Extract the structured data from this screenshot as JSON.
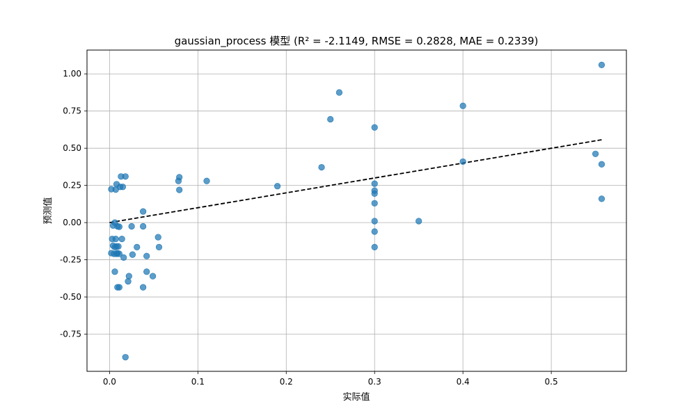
{
  "chart_data": {
    "type": "scatter",
    "title": "gaussian_process 模型 (R² = -2.1149, RMSE = 0.2828, MAE = 0.2339)",
    "xlabel": "实际值",
    "ylabel": "预测值",
    "xlim": [
      -0.0255,
      0.585
    ],
    "ylim": [
      -1.0,
      1.16
    ],
    "x_ticks": [
      0.0,
      0.1,
      0.2,
      0.3,
      0.4,
      0.5
    ],
    "x_tick_labels": [
      "0.0",
      "0.1",
      "0.2",
      "0.3",
      "0.4",
      "0.5"
    ],
    "y_ticks": [
      1.0,
      0.75,
      0.5,
      0.25,
      0.0,
      -0.25,
      -0.5,
      -0.75
    ],
    "y_tick_labels": [
      "1.00",
      "0.75",
      "0.50",
      "0.25",
      "0.00",
      "-0.25",
      "-0.50",
      "-0.75"
    ],
    "grid": true,
    "colors": {
      "points": "#1f77b4",
      "ideal_line": "#000000",
      "grid": "#b0b0b0"
    },
    "ideal_line": {
      "x": [
        0.0,
        0.557
      ],
      "y": [
        0.0,
        0.557
      ],
      "style": "dashed"
    },
    "points": [
      {
        "x": 0.557,
        "y": 1.06
      },
      {
        "x": 0.26,
        "y": 0.875
      },
      {
        "x": 0.4,
        "y": 0.785
      },
      {
        "x": 0.25,
        "y": 0.695
      },
      {
        "x": 0.3,
        "y": 0.64
      },
      {
        "x": 0.55,
        "y": 0.462
      },
      {
        "x": 0.4,
        "y": 0.41
      },
      {
        "x": 0.557,
        "y": 0.392
      },
      {
        "x": 0.24,
        "y": 0.372
      },
      {
        "x": 0.013,
        "y": 0.31
      },
      {
        "x": 0.018,
        "y": 0.31
      },
      {
        "x": 0.079,
        "y": 0.305
      },
      {
        "x": 0.078,
        "y": 0.28
      },
      {
        "x": 0.11,
        "y": 0.28
      },
      {
        "x": 0.3,
        "y": 0.262
      },
      {
        "x": 0.008,
        "y": 0.258
      },
      {
        "x": 0.012,
        "y": 0.24
      },
      {
        "x": 0.015,
        "y": 0.24
      },
      {
        "x": 0.19,
        "y": 0.245
      },
      {
        "x": 0.002,
        "y": 0.225
      },
      {
        "x": 0.007,
        "y": 0.222
      },
      {
        "x": 0.079,
        "y": 0.22
      },
      {
        "x": 0.3,
        "y": 0.215
      },
      {
        "x": 0.3,
        "y": 0.195
      },
      {
        "x": 0.557,
        "y": 0.16
      },
      {
        "x": 0.3,
        "y": 0.13
      },
      {
        "x": 0.038,
        "y": 0.075
      },
      {
        "x": 0.3,
        "y": 0.01
      },
      {
        "x": 0.35,
        "y": 0.01
      },
      {
        "x": 0.006,
        "y": 0.0
      },
      {
        "x": 0.004,
        "y": -0.02
      },
      {
        "x": 0.009,
        "y": -0.025
      },
      {
        "x": 0.011,
        "y": -0.028
      },
      {
        "x": 0.025,
        "y": -0.025
      },
      {
        "x": 0.038,
        "y": -0.025
      },
      {
        "x": 0.3,
        "y": -0.06
      },
      {
        "x": 0.055,
        "y": -0.098
      },
      {
        "x": 0.003,
        "y": -0.11
      },
      {
        "x": 0.007,
        "y": -0.11
      },
      {
        "x": 0.014,
        "y": -0.11
      },
      {
        "x": 0.004,
        "y": -0.155
      },
      {
        "x": 0.008,
        "y": -0.16
      },
      {
        "x": 0.01,
        "y": -0.16
      },
      {
        "x": 0.006,
        "y": -0.165
      },
      {
        "x": 0.031,
        "y": -0.165
      },
      {
        "x": 0.056,
        "y": -0.165
      },
      {
        "x": 0.3,
        "y": -0.165
      },
      {
        "x": 0.002,
        "y": -0.205
      },
      {
        "x": 0.005,
        "y": -0.21
      },
      {
        "x": 0.008,
        "y": -0.21
      },
      {
        "x": 0.009,
        "y": -0.205
      },
      {
        "x": 0.011,
        "y": -0.21
      },
      {
        "x": 0.026,
        "y": -0.215
      },
      {
        "x": 0.042,
        "y": -0.225
      },
      {
        "x": 0.016,
        "y": -0.235
      },
      {
        "x": 0.006,
        "y": -0.33
      },
      {
        "x": 0.042,
        "y": -0.33
      },
      {
        "x": 0.022,
        "y": -0.36
      },
      {
        "x": 0.049,
        "y": -0.36
      },
      {
        "x": 0.021,
        "y": -0.395
      },
      {
        "x": 0.009,
        "y": -0.435
      },
      {
        "x": 0.011,
        "y": -0.435
      },
      {
        "x": 0.038,
        "y": -0.435
      },
      {
        "x": 0.018,
        "y": -0.905
      }
    ]
  }
}
